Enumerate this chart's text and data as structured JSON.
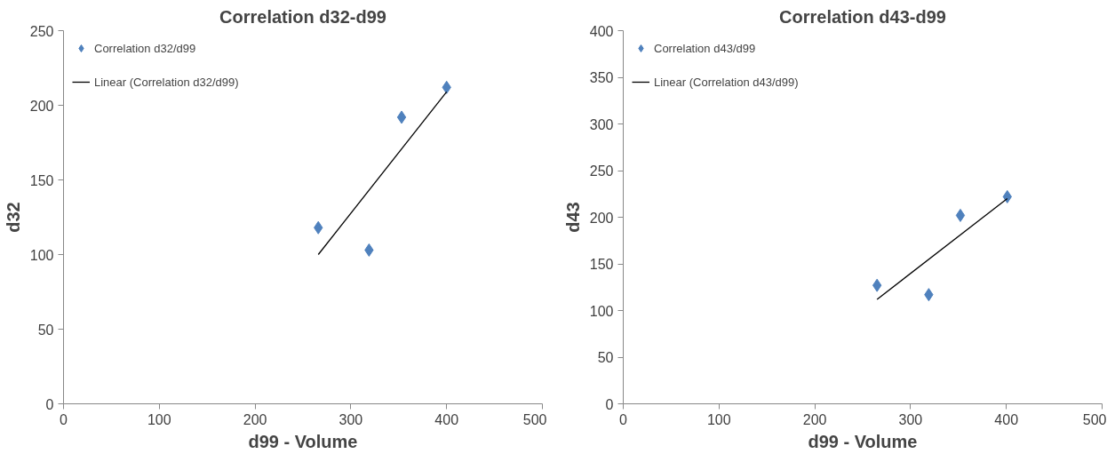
{
  "chart_data": [
    {
      "type": "scatter",
      "title": "Correlation d32-d99",
      "xlabel": "d99 - Volume",
      "ylabel": "d32",
      "xlim": [
        0,
        500
      ],
      "xticks": [
        0,
        100,
        200,
        300,
        400,
        500
      ],
      "ylim": [
        0,
        250
      ],
      "yticks": [
        0,
        50,
        100,
        150,
        200,
        250
      ],
      "grid": false,
      "legend": "top left",
      "series": [
        {
          "name": "Correlation d32/d99",
          "color": "#4f81bd",
          "marker": "diamond",
          "x": [
            266,
            319,
            353,
            400
          ],
          "values": [
            118,
            103,
            192,
            212
          ]
        },
        {
          "name": "Linear (Correlation d32/d99)",
          "type": "line",
          "color": "#000000",
          "x": [
            266,
            400
          ],
          "values": [
            100,
            209
          ]
        }
      ]
    },
    {
      "type": "scatter",
      "title": "Correlation d43-d99",
      "xlabel": "d99 - Volume",
      "ylabel": "d43",
      "xlim": [
        0,
        500
      ],
      "xticks": [
        0,
        100,
        200,
        300,
        400,
        500
      ],
      "ylim": [
        0,
        400
      ],
      "yticks": [
        0,
        50,
        100,
        150,
        200,
        250,
        300,
        350,
        400
      ],
      "grid": false,
      "legend": "top left",
      "series": [
        {
          "name": "Correlation d43/d99",
          "color": "#4f81bd",
          "marker": "diamond",
          "x": [
            265,
            319,
            352,
            401
          ],
          "values": [
            127,
            117,
            202,
            222
          ]
        },
        {
          "name": "Linear (Correlation d43/d99)",
          "type": "line",
          "color": "#000000",
          "x": [
            265,
            401
          ],
          "values": [
            112,
            220
          ]
        }
      ]
    }
  ]
}
